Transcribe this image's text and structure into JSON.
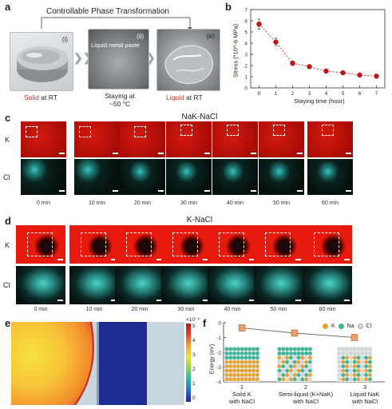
{
  "panel_a": {
    "label": "a",
    "title": "Controllable Phase Transformation",
    "roman": [
      "(i)",
      "(ii)",
      "(iii)"
    ],
    "paste_label": "Liquid metal paste",
    "staying_line1": "Staying at",
    "staying_line2": "~50 °C",
    "solid_word": "Solid",
    "solid_rest": " at RT",
    "liquid_word": "Liquid",
    "liquid_rest": " at RT",
    "colors": {
      "red": "#d62b1f"
    }
  },
  "panel_b": {
    "label": "b",
    "ylabel": "Stress (*10^-6 MPa)",
    "xlabel": "Staying time (hour)"
  },
  "chart_data": {
    "type": "scatter",
    "x": [
      0,
      1,
      2,
      3,
      4,
      5,
      6,
      7
    ],
    "y": [
      5.7,
      4.1,
      2.2,
      1.9,
      1.5,
      1.35,
      1.15,
      1.05
    ],
    "yerr": [
      0.45,
      0.35,
      0.2,
      0.15,
      0.12,
      0.1,
      0.1,
      0.1
    ],
    "xlim": [
      -0.5,
      7.5
    ],
    "ylim": [
      0,
      7
    ],
    "xticks": [
      "0",
      "1",
      "2",
      "3",
      "4",
      "5",
      "6",
      "7"
    ],
    "yticks": [
      "0",
      "1",
      "2",
      "3",
      "4",
      "5",
      "6",
      "7"
    ],
    "xlabel": "Staying time (hour)",
    "ylabel": "Stress (*10^-6 MPa)",
    "color": "#c0141b"
  },
  "panel_c": {
    "label": "c",
    "title": "NaK-NaCl",
    "row_labels": [
      "K",
      "Cl"
    ],
    "times": [
      "0 min",
      "10 min",
      "20 min",
      "30 min",
      "40 min",
      "50 min",
      "60 min"
    ]
  },
  "panel_d": {
    "label": "d",
    "title": "K-NaCl",
    "row_labels": [
      "K",
      "Cl"
    ],
    "times": [
      "0 min",
      "10 min",
      "20 min",
      "30 min",
      "40 min",
      "50 min",
      "60 min"
    ]
  },
  "panel_e": {
    "label": "e",
    "scale_exp": "×10⁻⁵",
    "ticks": [
      "5",
      "4",
      "3",
      "2",
      "1",
      "0"
    ]
  },
  "panel_f": {
    "label": "f",
    "ylabel": "Energy (eV)",
    "legend": [
      "K",
      "Na",
      "Cl"
    ],
    "legend_colors": [
      "#e3a53a",
      "#3fb59a",
      "#d8d8d8"
    ],
    "categories": [
      "Solid K with NaCl",
      "Semi-liquid (K+NaK) with NaCl",
      "Liquid NaK with NaCl"
    ],
    "cat_lines": [
      [
        "1",
        "Solid K",
        "with NaCl"
      ],
      [
        "2",
        "Semi-liquid (K+NaK)",
        "with NaCl"
      ],
      [
        "3",
        "Liquid NaK",
        "with NaCl"
      ]
    ],
    "values": [
      -0.35,
      -0.7,
      -1.0
    ],
    "yticks": [
      "0",
      "-1",
      "-2",
      "-3",
      "-4"
    ],
    "ylim": [
      -4,
      0
    ],
    "marker_color": "#e8a06a"
  }
}
